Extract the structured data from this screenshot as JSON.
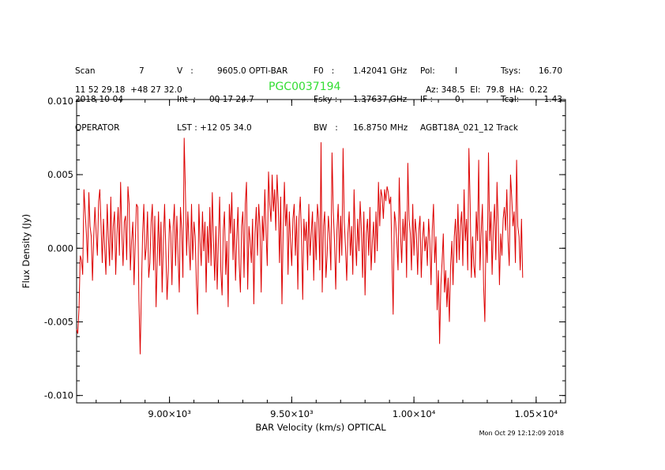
{
  "header": {
    "col1": [
      "Scan",
      "2018-10-04",
      "OPERATOR"
    ],
    "col1b": [
      "7",
      "",
      ""
    ],
    "col2": [
      "V   :",
      "Int  :",
      "LST : +12 05 34.0"
    ],
    "col2b": [
      "9605.0 OPTI-BAR",
      "00 17 24.7",
      ""
    ],
    "col3": [
      "F0   :",
      "Fsky :",
      "BW   :"
    ],
    "col3b": [
      "1.42041 GHz",
      "1.37637 GHz",
      "16.8750 MHz"
    ],
    "col4": [
      "Pol:",
      "IF :",
      "AGBT18A_021_12 Track"
    ],
    "col4b": [
      "I",
      "0",
      ""
    ],
    "col5": [
      "Tsys:",
      "Tcal:"
    ],
    "col5b": [
      "16.70",
      "1.43"
    ],
    "coords": "11 52 29.18  +48 27 32.0",
    "object": "PGC0037194",
    "pointing": "Az: 348.5  El:  79.8  HA:  0.22"
  },
  "timestamp": "Mon Oct 29 12:12:09 2018",
  "colors": {
    "series": "#dd0000",
    "object": "#33dd33"
  },
  "chart_data": {
    "type": "line",
    "xlabel": "BAR Velocity (km/s) OPTICAL",
    "ylabel": "Flux Density (Jy)",
    "xlim": [
      8620,
      10620
    ],
    "ylim": [
      -0.0105,
      0.0101
    ],
    "xticks": [
      9000,
      9500,
      10000,
      10500
    ],
    "xtick_labels": [
      "9.00×10³",
      "9.50×10³",
      "1.00×10⁴",
      "1.05×10⁴"
    ],
    "yticks": [
      0.01,
      0.005,
      0.0,
      -0.005,
      -0.01
    ],
    "ytick_labels": [
      "0.010",
      "0.005",
      "0.000",
      "-0.005",
      "-0.010"
    ],
    "series": [
      {
        "x_start": 8620,
        "x_step": 5,
        "y": [
          -0.0055,
          -0.0058,
          -0.004,
          -0.0005,
          -0.0008,
          -0.0018,
          0.004,
          0.0025,
          0.001,
          -0.001,
          0.0038,
          0.0015,
          0.0008,
          -0.0022,
          0.0008,
          0.0028,
          0.001,
          -0.0005,
          0.0032,
          0.004,
          0.0015,
          -0.001,
          0.002,
          0.0,
          -0.0018,
          0.003,
          0.0008,
          -0.0012,
          0.0035,
          -0.0008,
          0.0015,
          0.0025,
          -0.0018,
          0.001,
          0.0028,
          -0.0005,
          0.0045,
          0.001,
          -0.0012,
          0.0018,
          0.0022,
          -0.0008,
          0.0042,
          0.003,
          -0.0015,
          0.0005,
          0.0018,
          -0.0025,
          0.0005,
          0.003,
          0.0028,
          -0.0035,
          -0.0072,
          -0.003,
          0.001,
          0.003,
          -0.0008,
          0.0,
          0.0025,
          -0.002,
          -0.001,
          0.0018,
          0.003,
          -0.0015,
          0.0022,
          -0.004,
          -0.0008,
          0.0025,
          -0.0012,
          0.0018,
          -0.003,
          0.0005,
          0.003,
          -0.0002,
          -0.0035,
          -0.0015,
          0.002,
          0.001,
          -0.0025,
          0.0015,
          0.003,
          -0.0012,
          0.0022,
          -0.0005,
          -0.003,
          0.0028,
          0.0012,
          -0.002,
          0.0075,
          0.004,
          -0.0005,
          0.0025,
          0.0002,
          -0.0015,
          0.003,
          -0.0008,
          0.0018,
          0.0008,
          -0.0025,
          -0.0045,
          0.003,
          0.0005,
          -0.0012,
          0.0025,
          -0.0002,
          0.0018,
          -0.003,
          0.0015,
          -0.001,
          0.0028,
          -0.0012,
          0.0038,
          0.0005,
          -0.0022,
          0.0015,
          -0.0028,
          0.0005,
          0.0035,
          -0.0015,
          -0.0032,
          0.0012,
          0.0025,
          -0.0018,
          0.0005,
          -0.004,
          0.003,
          0.001,
          0.0038,
          -0.0008,
          0.002,
          -0.0022,
          0.0005,
          0.0028,
          -0.001,
          -0.003,
          0.0015,
          0.0025,
          -0.002,
          0.003,
          0.0045,
          -0.0028,
          0.0015,
          0.0005,
          -0.001,
          0.002,
          -0.0038,
          0.001,
          0.0028,
          -0.0005,
          0.003,
          0.0015,
          -0.003,
          0.0022,
          0.0005,
          0.004,
          0.001,
          -0.0012,
          0.0052,
          0.003,
          0.0018,
          0.005,
          0.0025,
          0.004,
          0.0012,
          0.005,
          0.003,
          -0.001,
          0.0035,
          -0.0038,
          0.001,
          0.0045,
          0.0015,
          0.003,
          -0.0018,
          0.0025,
          0.0005,
          -0.0012,
          0.002,
          0.003,
          -0.0005,
          0.0022,
          -0.0028,
          0.002,
          0.0035,
          0.0008,
          -0.0035,
          0.002,
          0.0005,
          0.0018,
          -0.0015,
          0.003,
          -0.0005,
          0.001,
          0.0025,
          -0.0022,
          0.0018,
          -0.0008,
          0.003,
          0.002,
          -0.0015,
          0.0072,
          -0.003,
          0.0015,
          0.0025,
          -0.002,
          -0.0005,
          0.0022,
          0.001,
          -0.0015,
          0.0065,
          0.0025,
          0.0005,
          -0.0028,
          0.0012,
          0.003,
          -0.001,
          0.0022,
          -0.0005,
          0.0068,
          0.0018,
          0.0,
          -0.0022,
          0.001,
          0.0025,
          -0.0005,
          0.0015,
          -0.0018,
          0.004,
          0.0008,
          -0.0012,
          0.002,
          -0.0002,
          0.0032,
          0.0012,
          -0.002,
          0.0025,
          -0.0032,
          0.001,
          0.002,
          -0.0005,
          0.0028,
          -0.0015,
          0.0005,
          0.0018,
          -0.001,
          0.0025,
          -0.0002,
          0.0045,
          0.0015,
          0.004,
          0.0035,
          0.002,
          0.004,
          0.0032,
          0.0042,
          0.0038,
          0.003,
          0.0035,
          -0.0008,
          -0.0045,
          0.0025,
          0.0018,
          0.0005,
          -0.0015,
          0.0048,
          0.001,
          -0.001,
          0.002,
          0.0005,
          0.0025,
          -0.002,
          0.0058,
          0.002,
          0.001,
          -0.0015,
          0.003,
          -0.0005,
          0.002,
          0.001,
          -0.0018,
          0.0012,
          0.0022,
          -0.002,
          0.0005,
          0.0018,
          -0.0002,
          0.0008,
          -0.0012,
          0.002,
          0.0005,
          -0.0025,
          0.0012,
          0.003,
          -0.001,
          0.0008,
          -0.0042,
          -0.0015,
          -0.0065,
          -0.0025,
          -0.001,
          0.001,
          -0.003,
          -0.0015,
          -0.004,
          -0.002,
          -0.005,
          -0.0012,
          0.0005,
          -0.0025,
          0.0008,
          0.002,
          -0.001,
          0.003,
          -0.0008,
          0.0015,
          0.0025,
          -0.0012,
          0.004,
          0.0005,
          0.002,
          -0.0015,
          0.0068,
          0.003,
          -0.002,
          0.0008,
          -0.0012,
          -0.002,
          0.0025,
          0.0005,
          0.006,
          -0.0015,
          0.001,
          0.003,
          -0.0025,
          -0.005,
          0.0012,
          -0.001,
          0.0065,
          0.0005,
          0.0025,
          -0.0018,
          0.0015,
          0.003,
          -0.0008,
          0.0045,
          0.0015,
          -0.0025,
          0.001,
          -0.0005,
          0.002,
          0.0028,
          0.0012,
          0.004,
          0.0005,
          -0.0012,
          0.005,
          0.0035,
          0.0015,
          0.0025,
          -0.001,
          0.006,
          0.0015,
          0.0008,
          -0.0015,
          0.002,
          -0.002
        ]
      }
    ]
  }
}
